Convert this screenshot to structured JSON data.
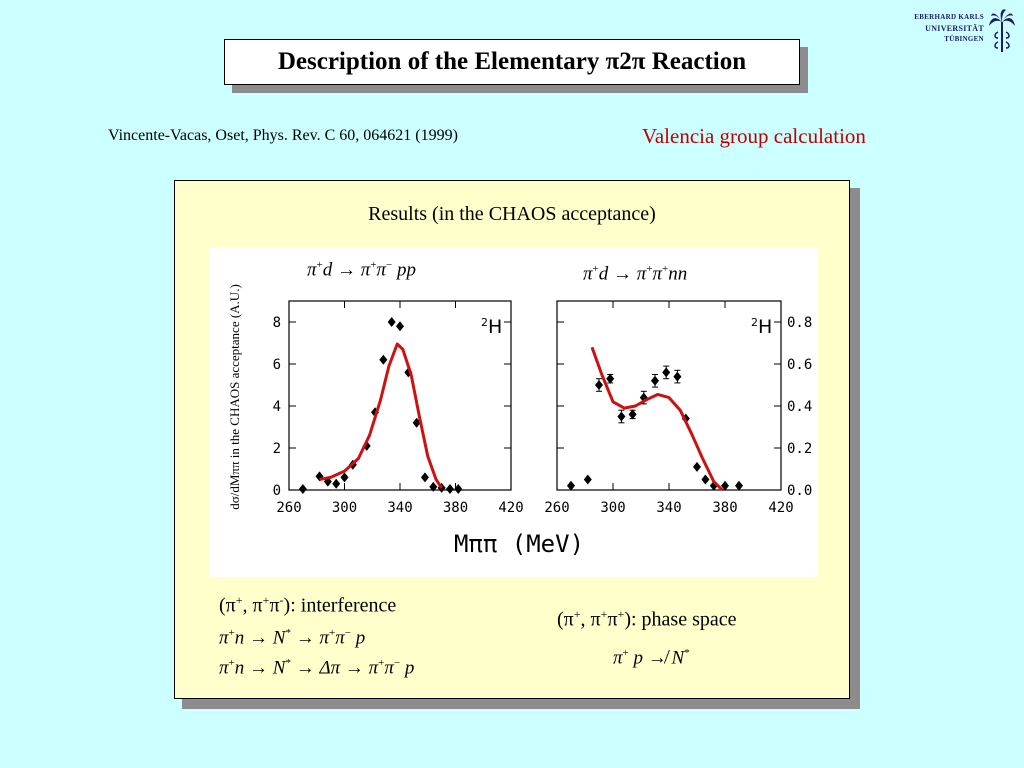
{
  "title": "Description of the Elementary π2π Reaction",
  "logo": {
    "line1": "Eberhard Karls",
    "line2": "Universität",
    "line3": "Tübingen"
  },
  "citation": "Vincente-Vacas, Oset, Phys. Rev. C 60, 064621 (1999)",
  "group_label": "Valencia group calculation",
  "results_title": "Results (in the CHAOS acceptance)",
  "ylabel": "dσ/dMππ in the CHAOS acceptance (A.U.)",
  "xlabel": "Mππ (MeV)",
  "bottom_left": {
    "caption": "(π+, π+π-): interference",
    "eq1": "π+n → N* → π+π− p",
    "eq2": "π+n → N* → Δπ → π+π− p"
  },
  "bottom_right": {
    "caption": "(π+, π+π+): phase space",
    "eq1": "π+ p ↛ N*"
  },
  "colors": {
    "curve": "#cc1111",
    "title_shadow": "#8c8c8c",
    "panel": "#ffffcc",
    "background": "#ccffff"
  },
  "chart_data": [
    {
      "type": "scatter",
      "title": "π+d → π+π− pp",
      "annotation": "2H",
      "xlabel": "Mππ (MeV)",
      "ylabel": "dσ/dMππ in the CHAOS acceptance (A.U.)",
      "xlim": [
        260,
        420
      ],
      "ylim": [
        0,
        9
      ],
      "xticks": [
        260,
        300,
        340,
        380,
        420
      ],
      "yticks": [
        0,
        2,
        4,
        6,
        8
      ],
      "ytick_side": "left",
      "series": [
        {
          "points": [
            [
              270,
              0.05
            ],
            [
              282,
              0.65
            ],
            [
              288,
              0.4
            ],
            [
              294,
              0.3
            ],
            [
              300,
              0.6
            ],
            [
              306,
              1.2
            ],
            [
              316,
              2.1
            ],
            [
              322,
              3.7
            ],
            [
              328,
              6.2
            ],
            [
              334,
              8.0
            ],
            [
              340,
              7.8
            ],
            [
              346,
              5.6
            ],
            [
              352,
              3.2
            ],
            [
              358,
              0.6
            ],
            [
              364,
              0.15
            ],
            [
              370,
              0.1
            ],
            [
              376,
              0.05
            ],
            [
              382,
              0.05
            ]
          ]
        },
        {
          "curve": [
            [
              282,
              0.5
            ],
            [
              290,
              0.6
            ],
            [
              300,
              0.9
            ],
            [
              310,
              1.5
            ],
            [
              318,
              2.6
            ],
            [
              326,
              4.3
            ],
            [
              332,
              5.9
            ],
            [
              338,
              6.95
            ],
            [
              342,
              6.7
            ],
            [
              348,
              5.5
            ],
            [
              354,
              3.5
            ],
            [
              360,
              1.6
            ],
            [
              366,
              0.5
            ],
            [
              370,
              0.1
            ]
          ]
        }
      ]
    },
    {
      "type": "scatter",
      "title": "π+d → π+π+nn",
      "annotation": "2H",
      "xlabel": "Mππ (MeV)",
      "xlim": [
        260,
        420
      ],
      "ylim": [
        0,
        0.9
      ],
      "xticks": [
        260,
        300,
        340,
        380,
        420
      ],
      "yticks": [
        0.0,
        0.2,
        0.4,
        0.6,
        0.8
      ],
      "ytick_side": "right",
      "series": [
        {
          "points": [
            [
              270,
              0.02
            ],
            [
              282,
              0.05
            ],
            [
              290,
              0.5
            ],
            [
              298,
              0.53
            ],
            [
              306,
              0.35
            ],
            [
              314,
              0.36
            ],
            [
              322,
              0.44
            ],
            [
              330,
              0.52
            ],
            [
              338,
              0.56
            ],
            [
              346,
              0.54
            ],
            [
              352,
              0.34
            ],
            [
              360,
              0.11
            ],
            [
              366,
              0.05
            ],
            [
              372,
              0.02
            ],
            [
              380,
              0.02
            ],
            [
              390,
              0.02
            ]
          ],
          "errors": [
            0,
            0,
            0.03,
            0.02,
            0.03,
            0.02,
            0.03,
            0.03,
            0.03,
            0.03,
            0,
            0,
            0,
            0,
            0,
            0
          ]
        },
        {
          "curve": [
            [
              285,
              0.68
            ],
            [
              292,
              0.55
            ],
            [
              300,
              0.42
            ],
            [
              308,
              0.39
            ],
            [
              316,
              0.4
            ],
            [
              324,
              0.43
            ],
            [
              332,
              0.455
            ],
            [
              340,
              0.44
            ],
            [
              348,
              0.38
            ],
            [
              356,
              0.27
            ],
            [
              364,
              0.15
            ],
            [
              372,
              0.04
            ],
            [
              378,
              0.0
            ]
          ]
        }
      ]
    }
  ]
}
